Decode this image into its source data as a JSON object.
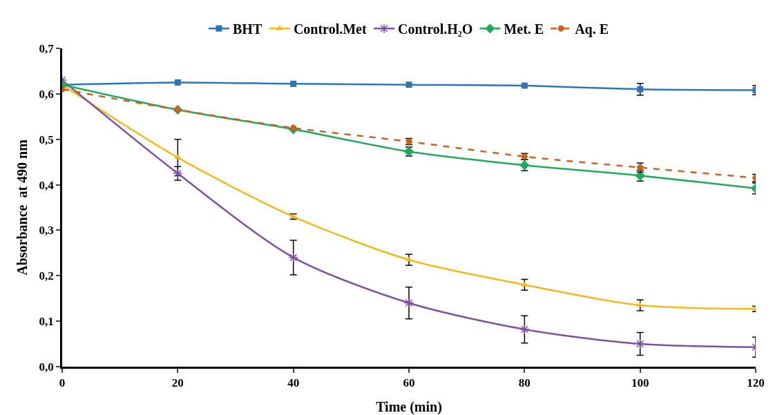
{
  "chart_data": {
    "type": "line",
    "xlabel": "Time (min)",
    "ylabel": "Absorbance  at 490 nm",
    "x": [
      0,
      20,
      40,
      60,
      80,
      100,
      120
    ],
    "xlim": [
      0,
      120
    ],
    "xticks": [
      0,
      20,
      40,
      60,
      80,
      100,
      120
    ],
    "ylim": [
      0,
      0.7
    ],
    "yticks": [
      {
        "value": 0,
        "label": "0,0"
      },
      {
        "value": 0.1,
        "label": "0,1"
      },
      {
        "value": 0.2,
        "label": "0,2"
      },
      {
        "value": 0.3,
        "label": "0,3"
      },
      {
        "value": 0.4,
        "label": "0,4"
      },
      {
        "value": 0.5,
        "label": "0,5"
      },
      {
        "value": 0.6,
        "label": "0,6"
      },
      {
        "value": 0.7,
        "label": "0,7"
      }
    ],
    "grid": false,
    "legend": "top",
    "series": [
      {
        "name": "BHT",
        "color": "#2e75b6",
        "marker": "square",
        "line_style": "solid",
        "values": [
          0.62,
          0.625,
          0.622,
          0.62,
          0.618,
          0.61,
          0.608
        ],
        "errors": [
          null,
          null,
          null,
          null,
          null,
          0.013,
          0.01
        ]
      },
      {
        "name": "Control.Met",
        "color": "#f4b916",
        "marker": "triangle",
        "line_style": "solid",
        "values": [
          0.62,
          0.46,
          0.33,
          0.235,
          0.18,
          0.135,
          0.127
        ],
        "errors": [
          null,
          0.04,
          0.006,
          0.012,
          0.012,
          0.012,
          0.006
        ]
      },
      {
        "name": "Control.H₂O",
        "color": "#7f4fa8",
        "marker": "cross",
        "line_style": "solid",
        "values": [
          0.63,
          0.425,
          0.24,
          0.14,
          0.082,
          0.05,
          0.043
        ],
        "errors": [
          null,
          0.015,
          0.038,
          0.035,
          0.03,
          0.025,
          0.022
        ]
      },
      {
        "name": "Met. E",
        "color": "#1faa5a",
        "marker": "diamond",
        "line_style": "solid",
        "values": [
          0.62,
          0.565,
          0.522,
          0.473,
          0.443,
          0.42,
          0.392
        ],
        "errors": [
          null,
          null,
          null,
          0.01,
          0.012,
          0.012,
          0.012
        ]
      },
      {
        "name": "Aq. E",
        "color": "#c8621e",
        "marker": "circle",
        "line_style": "dashed",
        "values": [
          0.61,
          0.565,
          0.525,
          0.495,
          0.462,
          0.438,
          0.415
        ],
        "errors": [
          null,
          null,
          null,
          0.007,
          0.007,
          0.01,
          0.008
        ]
      }
    ]
  }
}
